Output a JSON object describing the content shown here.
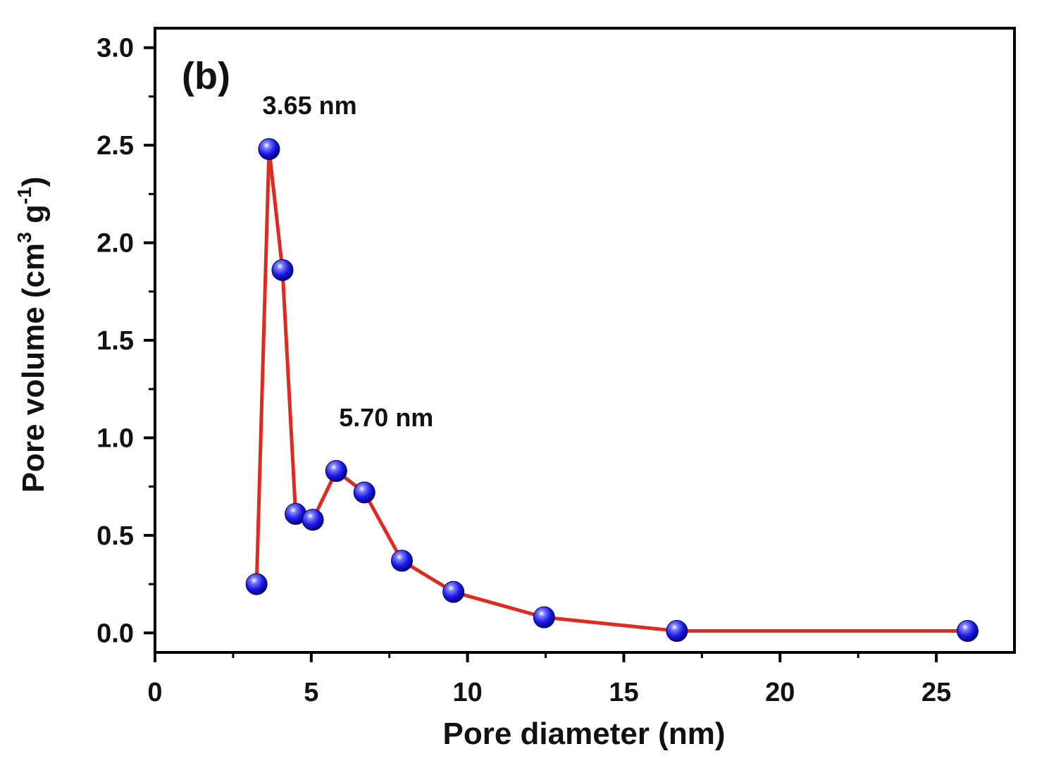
{
  "chart_data": {
    "type": "line",
    "panel_label": "(b)",
    "xlabel": "Pore diameter (nm)",
    "ylabel": {
      "main": "Pore volume  (cm",
      "sup1": "3",
      "mid": " g",
      "sup2": "-1",
      "end": ")"
    },
    "xlim": [
      0,
      27.5
    ],
    "ylim": [
      -0.1,
      3.1
    ],
    "x_ticks": [
      0,
      5,
      10,
      15,
      20,
      25
    ],
    "x_tick_labels": [
      "0",
      "5",
      "10",
      "15",
      "20",
      "25"
    ],
    "y_ticks": [
      0.0,
      0.5,
      1.0,
      1.5,
      2.0,
      2.5,
      3.0
    ],
    "y_tick_labels": [
      "0.0",
      "0.5",
      "1.0",
      "1.5",
      "2.0",
      "2.5",
      "3.0"
    ],
    "grid": false,
    "series": [
      {
        "line_color": "#e02a1f",
        "marker_color": "#1a1ae6",
        "x": [
          3.25,
          3.65,
          4.08,
          4.5,
          5.05,
          5.8,
          6.7,
          7.9,
          9.55,
          12.45,
          16.7,
          26.0
        ],
        "y": [
          0.25,
          2.48,
          1.86,
          0.61,
          0.58,
          0.83,
          0.72,
          0.37,
          0.21,
          0.08,
          0.01,
          0.01
        ]
      }
    ],
    "annotations": [
      {
        "text": "3.65 nm",
        "x": 4.95,
        "y": 2.66
      },
      {
        "text": "5.70 nm",
        "x": 7.4,
        "y": 1.06
      }
    ]
  }
}
